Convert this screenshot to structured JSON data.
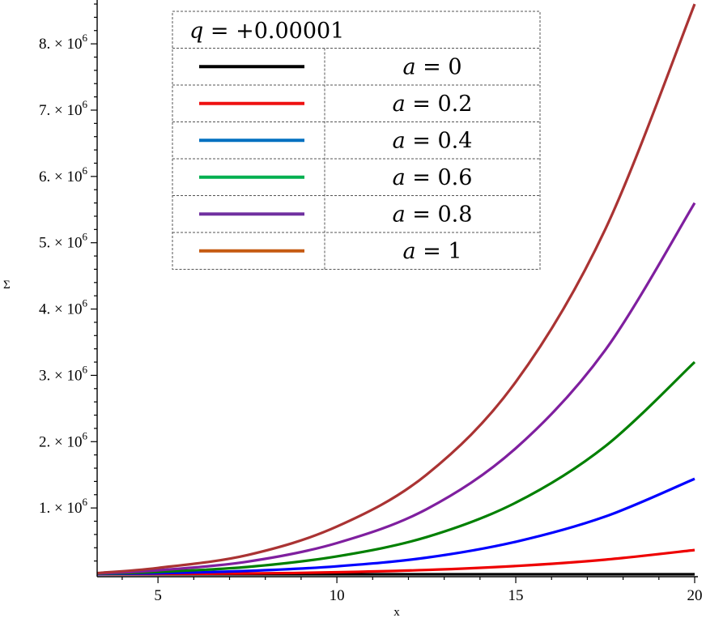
{
  "chart_data": {
    "type": "line",
    "xlabel": "x",
    "ylabel": "Σ",
    "xlim": [
      3.3,
      20
    ],
    "ylim": [
      0,
      8600000.0
    ],
    "x_ticks": [
      {
        "value": 5,
        "label": "5"
      },
      {
        "value": 10,
        "label": "10"
      },
      {
        "value": 15,
        "label": "15"
      },
      {
        "value": 20,
        "label": "20"
      }
    ],
    "y_ticks": [
      {
        "value": 1000000,
        "mant": "1.",
        "exp": "6"
      },
      {
        "value": 2000000,
        "mant": "2.",
        "exp": "6"
      },
      {
        "value": 3000000,
        "mant": "3.",
        "exp": "6"
      },
      {
        "value": 4000000,
        "mant": "4.",
        "exp": "6"
      },
      {
        "value": 5000000,
        "mant": "5.",
        "exp": "6"
      },
      {
        "value": 6000000,
        "mant": "6.",
        "exp": "6"
      },
      {
        "value": 7000000,
        "mant": "7.",
        "exp": "6"
      },
      {
        "value": 8000000,
        "mant": "8.",
        "exp": "6"
      }
    ],
    "legend": {
      "title_var": "q",
      "title_rest": " = +0.00001",
      "position": "top-left"
    },
    "series": [
      {
        "name": "a = 0",
        "var": "a",
        "rest": " = 0",
        "color": "#000000",
        "x": [
          3.3,
          5,
          7.5,
          10,
          12.5,
          15,
          17.5,
          20
        ],
        "y": [
          0,
          0,
          0,
          0,
          0,
          0,
          0,
          0
        ]
      },
      {
        "name": "a = 0.2",
        "var": "a",
        "rest": " = 0.2",
        "color": "#ee0000",
        "x": [
          3.3,
          5,
          7.5,
          10,
          12.5,
          15,
          17.5,
          20
        ],
        "y": [
          1000,
          4000,
          12000,
          30000,
          65000,
          125000,
          220000,
          365000
        ]
      },
      {
        "name": "a = 0.4",
        "var": "a",
        "rest": " = 0.4",
        "color": "#0000ff",
        "x": [
          3.3,
          5,
          7.5,
          10,
          12.5,
          15,
          17.5,
          20
        ],
        "y": [
          3000,
          15000,
          50000,
          120000,
          250000,
          490000,
          870000,
          1440000
        ]
      },
      {
        "name": "a = 0.6",
        "var": "a",
        "rest": " = 0.6",
        "color": "#008000",
        "x": [
          3.3,
          5,
          7.5,
          10,
          12.5,
          15,
          17.5,
          20
        ],
        "y": [
          7000,
          35000,
          110000,
          270000,
          560000,
          1080000,
          1930000,
          3200000
        ]
      },
      {
        "name": "a = 0.8",
        "var": "a",
        "rest": " = 0.8",
        "color": "#7f1f9f",
        "x": [
          3.3,
          5,
          7.5,
          10,
          12.5,
          15,
          17.5,
          20
        ],
        "y": [
          12000,
          60000,
          190000,
          470000,
          980000,
          1900000,
          3380000,
          5600000
        ]
      },
      {
        "name": "a = 1",
        "var": "a",
        "rest": " = 1",
        "color": "#aa3333",
        "x": [
          3.3,
          5,
          7.5,
          10,
          12.5,
          15,
          17.5,
          20
        ],
        "y": [
          18000,
          95000,
          290000,
          720000,
          1500000,
          2900000,
          5200000,
          8600000
        ]
      }
    ],
    "legend_line_colors": [
      "#000000",
      "#ee1111",
      "#0070c0",
      "#00b050",
      "#7030a0",
      "#c55a11"
    ],
    "grid": false
  }
}
